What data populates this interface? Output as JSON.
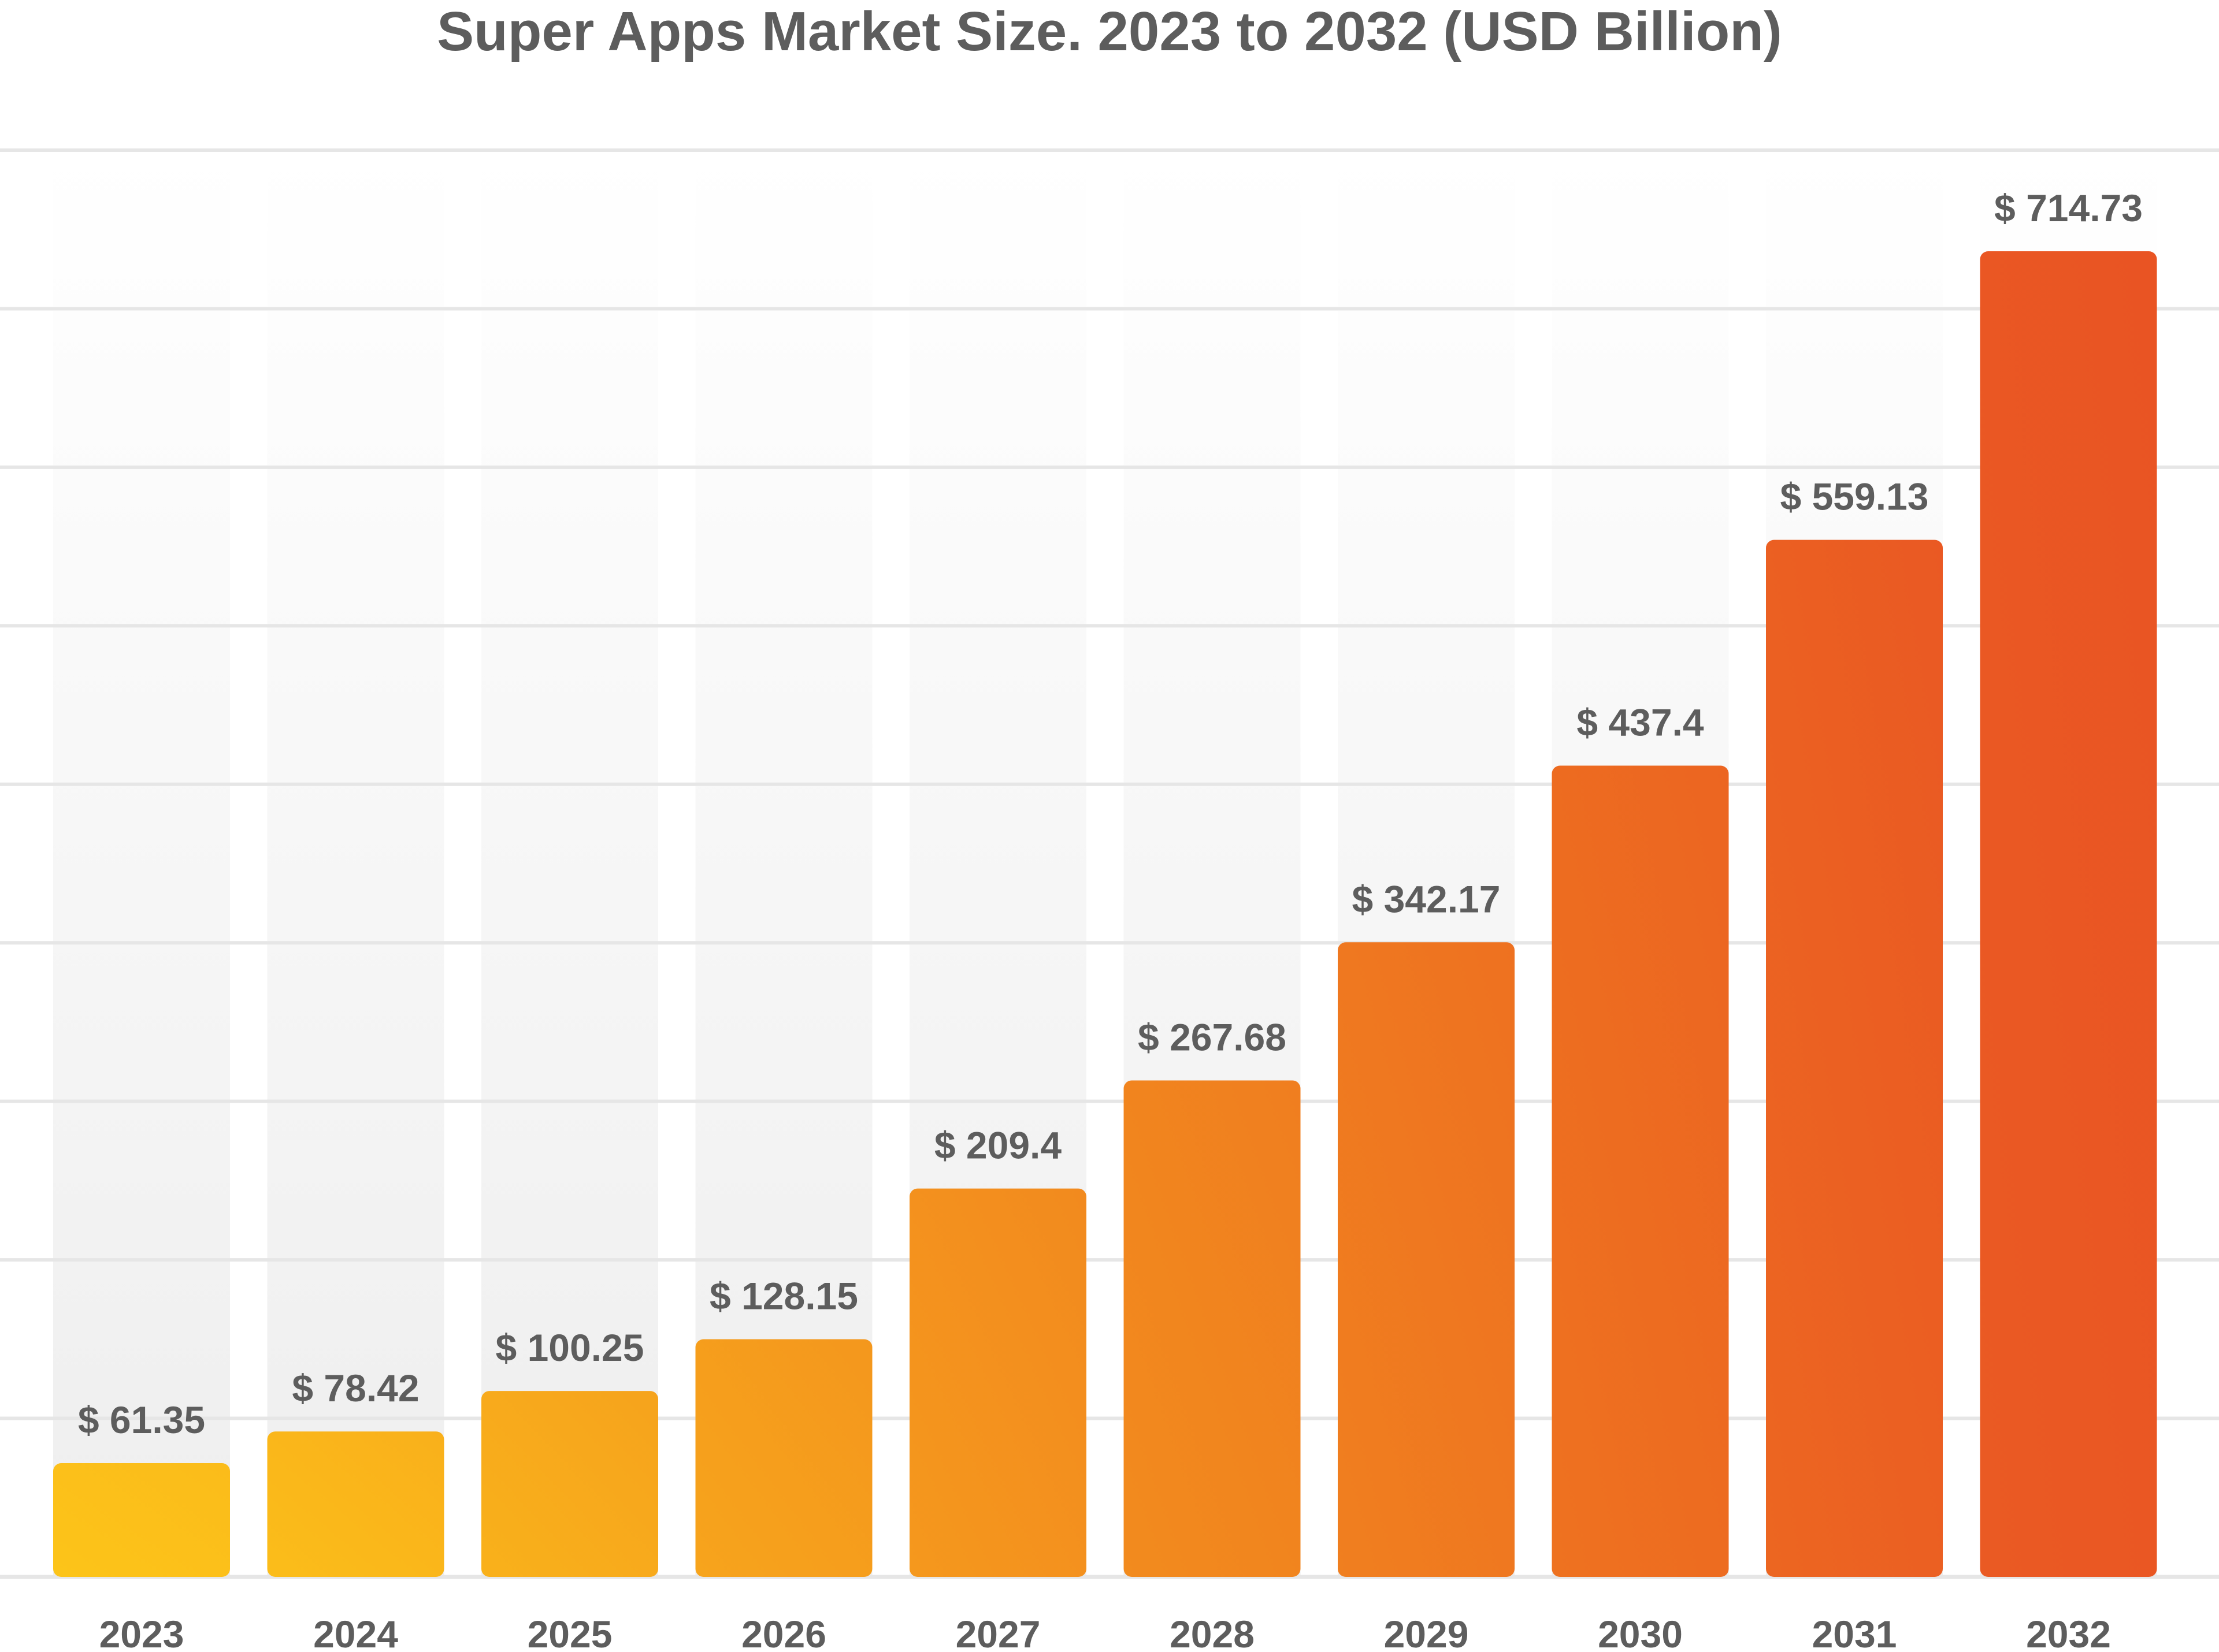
{
  "chart_data": {
    "type": "bar",
    "title": "Super Apps Market Size. 2023 to 2032 (USD Billion)",
    "xlabel": "",
    "ylabel": "",
    "categories": [
      "2023",
      "2024",
      "2025",
      "2026",
      "2027",
      "2028",
      "2029",
      "2030",
      "2031",
      "2032"
    ],
    "values": [
      61.35,
      78.42,
      100.25,
      128.15,
      209.4,
      267.68,
      342.17,
      437.4,
      559.13,
      714.73
    ],
    "data_labels": [
      "$ 61.35",
      "$ 78.42",
      "$ 100.25",
      "$ 128.15",
      "$ 209.4",
      "$ 267.68",
      "$ 342.17",
      "$ 437.4",
      "$ 559.13",
      "$ 714.73"
    ],
    "ylim": [
      0,
      800
    ],
    "grid": true,
    "legend": "none",
    "colors": {
      "bar_start": "#fcc419",
      "bar_end": "#e95423",
      "label_text": "#5d5d5d",
      "gridline": "#e6e6e6",
      "column_band": "#f3f3f3"
    }
  }
}
